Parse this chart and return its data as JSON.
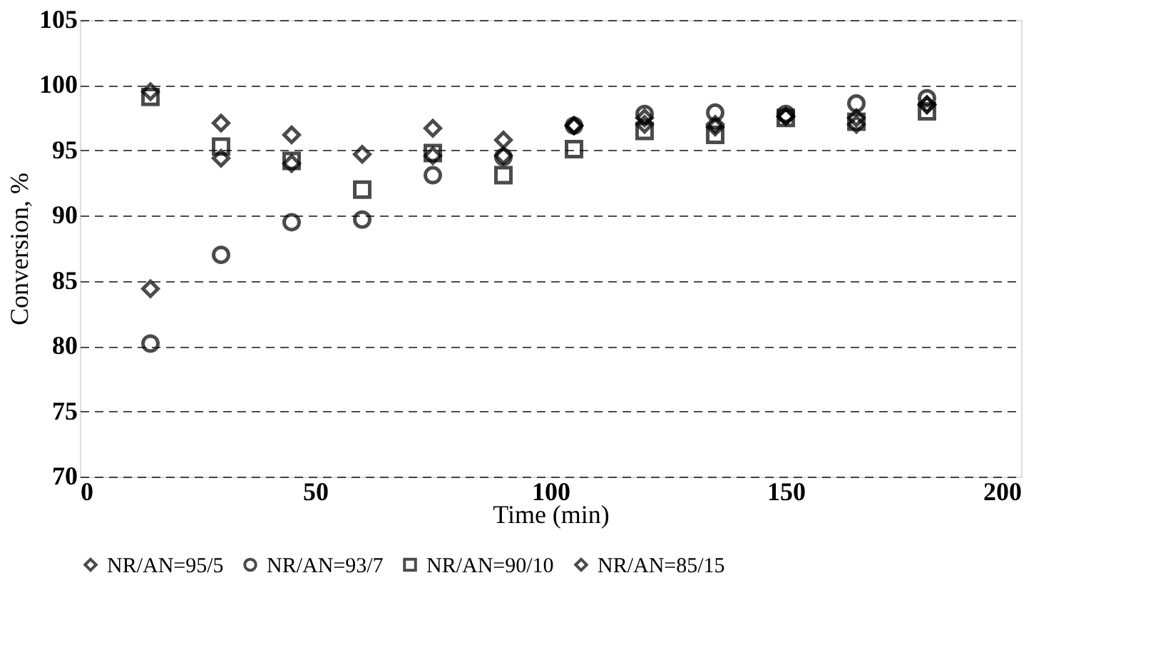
{
  "chart_data": {
    "type": "scatter",
    "xlabel": "Time (min)",
    "ylabel": "Conversion, %",
    "x": [
      15,
      30,
      45,
      60,
      75,
      90,
      105,
      120,
      135,
      150,
      165,
      180
    ],
    "series": [
      {
        "name": "NR/AN=95/5",
        "color": "#000000",
        "marker": "diamond",
        "values": [
          99.5,
          97.1,
          96.2,
          94.7,
          96.7,
          95.8,
          96.9,
          97.5,
          97.0,
          97.6,
          97.5,
          98.5
        ]
      },
      {
        "name": "NR/AN=93/7",
        "color": "#000000",
        "marker": "circle",
        "values": [
          80.2,
          87.0,
          89.5,
          89.7,
          93.1,
          94.5,
          96.9,
          97.8,
          97.9,
          97.8,
          98.6,
          99.0
        ]
      },
      {
        "name": "NR/AN=90/10",
        "color": "#000000",
        "marker": "square",
        "values": [
          99.1,
          95.3,
          94.2,
          92.0,
          94.8,
          93.1,
          95.1,
          96.5,
          96.2,
          97.5,
          97.2,
          98.0
        ]
      },
      {
        "name": "NR/AN=85/15",
        "color": "#000000",
        "marker": "diamond",
        "values": [
          84.4,
          94.4,
          94.0,
          null,
          94.6,
          94.6,
          96.9,
          97.0,
          96.8,
          97.6,
          97.0,
          98.5
        ]
      }
    ],
    "xlim": [
      0,
      200
    ],
    "xticks": [
      0,
      50,
      100,
      150,
      200
    ],
    "ylim": [
      70,
      105
    ],
    "yticks": [
      70,
      75,
      80,
      85,
      90,
      95,
      100,
      105
    ],
    "grid": "y",
    "legend": "bottom"
  }
}
